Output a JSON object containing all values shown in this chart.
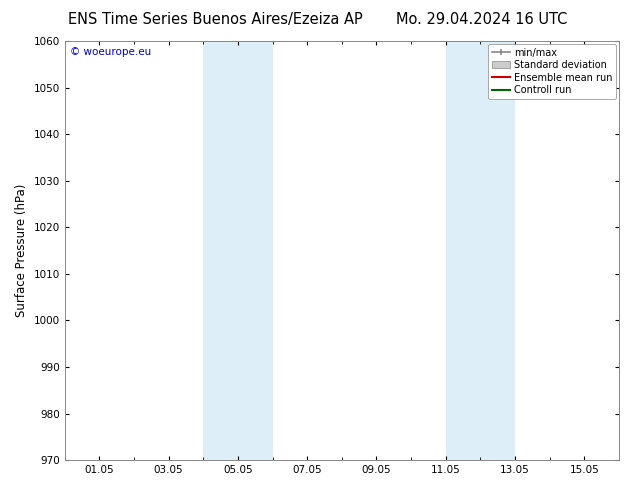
{
  "title_left": "ENS Time Series Buenos Aires/Ezeiza AP",
  "title_right": "Mo. 29.04.2024 16 UTC",
  "ylabel": "Surface Pressure (hPa)",
  "ylim": [
    970,
    1060
  ],
  "yticks": [
    970,
    980,
    990,
    1000,
    1010,
    1020,
    1030,
    1040,
    1050,
    1060
  ],
  "xtick_labels": [
    "01.05",
    "03.05",
    "05.05",
    "07.05",
    "09.05",
    "11.05",
    "13.05",
    "15.05"
  ],
  "xtick_positions": [
    1,
    3,
    5,
    7,
    9,
    11,
    13,
    15
  ],
  "xlim": [
    0,
    16
  ],
  "shaded_bands": [
    {
      "xmin": 4.0,
      "xmax": 5.0
    },
    {
      "xmin": 5.0,
      "xmax": 6.0
    },
    {
      "xmin": 11.0,
      "xmax": 12.0
    },
    {
      "xmin": 12.0,
      "xmax": 13.0
    }
  ],
  "shade_color": "#ddeef8",
  "watermark": "© woeurope.eu",
  "watermark_color": "#0000cc",
  "legend_items": [
    {
      "label": "min/max",
      "color": "#aaaaaa",
      "type": "minmax"
    },
    {
      "label": "Standard deviation",
      "color": "#cccccc",
      "type": "box"
    },
    {
      "label": "Ensemble mean run",
      "color": "#ff0000",
      "type": "line"
    },
    {
      "label": "Controll run",
      "color": "#008000",
      "type": "line"
    }
  ],
  "background_color": "#ffffff",
  "plot_bg_color": "#ffffff",
  "border_color": "#888888",
  "title_fontsize": 10.5,
  "axis_fontsize": 8.5,
  "tick_fontsize": 7.5,
  "fig_width": 6.34,
  "fig_height": 4.9
}
